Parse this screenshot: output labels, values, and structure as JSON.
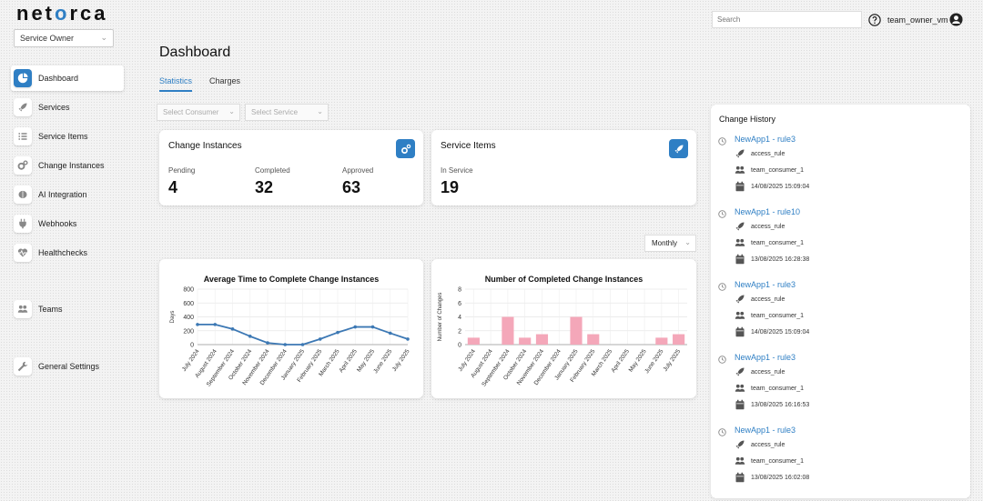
{
  "logo": {
    "prefix": "net",
    "accent": "o",
    "suffix": "rca"
  },
  "role_select": {
    "value": "Service Owner"
  },
  "header": {
    "search_placeholder": "Search",
    "username": "team_owner_vm"
  },
  "sidebar": {
    "items": [
      {
        "label": "Dashboard",
        "icon": "pie-chart-icon",
        "active": true
      },
      {
        "label": "Services",
        "icon": "rocket-icon"
      },
      {
        "label": "Service Items",
        "icon": "list-icon"
      },
      {
        "label": "Change Instances",
        "icon": "gears-icon"
      },
      {
        "label": "AI Integration",
        "icon": "brain-icon"
      },
      {
        "label": "Webhooks",
        "icon": "plug-icon"
      },
      {
        "label": "Healthchecks",
        "icon": "heartbeat-icon"
      },
      {
        "label": "Teams",
        "icon": "users-icon"
      },
      {
        "label": "General Settings",
        "icon": "wrench-icon"
      }
    ]
  },
  "main": {
    "title": "Dashboard",
    "tabs": [
      {
        "label": "Statistics",
        "active": true
      },
      {
        "label": "Charges"
      }
    ],
    "filters": {
      "consumer": "Select Consumer",
      "service": "Select Service"
    },
    "change_instances": {
      "title": "Change Instances",
      "stats": [
        {
          "label": "Pending",
          "value": "4"
        },
        {
          "label": "Completed",
          "value": "32"
        },
        {
          "label": "Approved",
          "value": "63"
        }
      ]
    },
    "service_items": {
      "title": "Service Items",
      "stats": [
        {
          "label": "In Service",
          "value": "19"
        }
      ]
    },
    "period_select": "Monthly"
  },
  "chart_data": [
    {
      "type": "line",
      "title": "Average Time to Complete Change Instances",
      "ylabel": "Days",
      "xlabel": "",
      "ylim": [
        0,
        800
      ],
      "yticks": [
        0,
        200,
        400,
        600,
        800
      ],
      "categories": [
        "July 2024",
        "August 2024",
        "September 2024",
        "October 2024",
        "November 2024",
        "December 2024",
        "January 2025",
        "February 2025",
        "March 2025",
        "April 2025",
        "May 2025",
        "June 2025",
        "July 2025"
      ],
      "values": [
        290,
        290,
        225,
        120,
        25,
        0,
        0,
        80,
        175,
        255,
        255,
        165,
        80
      ],
      "color": "#3c78b4",
      "grid": true
    },
    {
      "type": "bar",
      "title": "Number of Completed Change Instances",
      "ylabel": "Number of Changes",
      "xlabel": "",
      "ylim": [
        0,
        8
      ],
      "yticks": [
        0,
        2,
        4,
        6,
        8
      ],
      "categories": [
        "July 2024",
        "August 2024",
        "September 2024",
        "October 2024",
        "November 2024",
        "December 2024",
        "January 2025",
        "February 2025",
        "March 2025",
        "April 2025",
        "May 2025",
        "June 2025",
        "July 2025"
      ],
      "values": [
        1,
        0,
        4,
        1,
        1.5,
        0,
        4,
        1.5,
        0,
        0,
        0,
        1,
        1.5
      ],
      "color": "#f4a7b9",
      "grid": true
    }
  ],
  "history": {
    "title": "Change History",
    "entries": [
      {
        "name": "NewApp1 - rule3",
        "type": "access_rule",
        "team": "team_consumer_1",
        "date": "14/08/2025 15:09:04"
      },
      {
        "name": "NewApp1 - rule10",
        "type": "access_rule",
        "team": "team_consumer_1",
        "date": "13/08/2025 16:28:38"
      },
      {
        "name": "NewApp1 - rule3",
        "type": "access_rule",
        "team": "team_consumer_1",
        "date": "14/08/2025 15:09:04"
      },
      {
        "name": "NewApp1 - rule3",
        "type": "access_rule",
        "team": "team_consumer_1",
        "date": "13/08/2025 16:16:53"
      },
      {
        "name": "NewApp1 - rule3",
        "type": "access_rule",
        "team": "team_consumer_1",
        "date": "13/08/2025 16:02:08"
      }
    ]
  }
}
